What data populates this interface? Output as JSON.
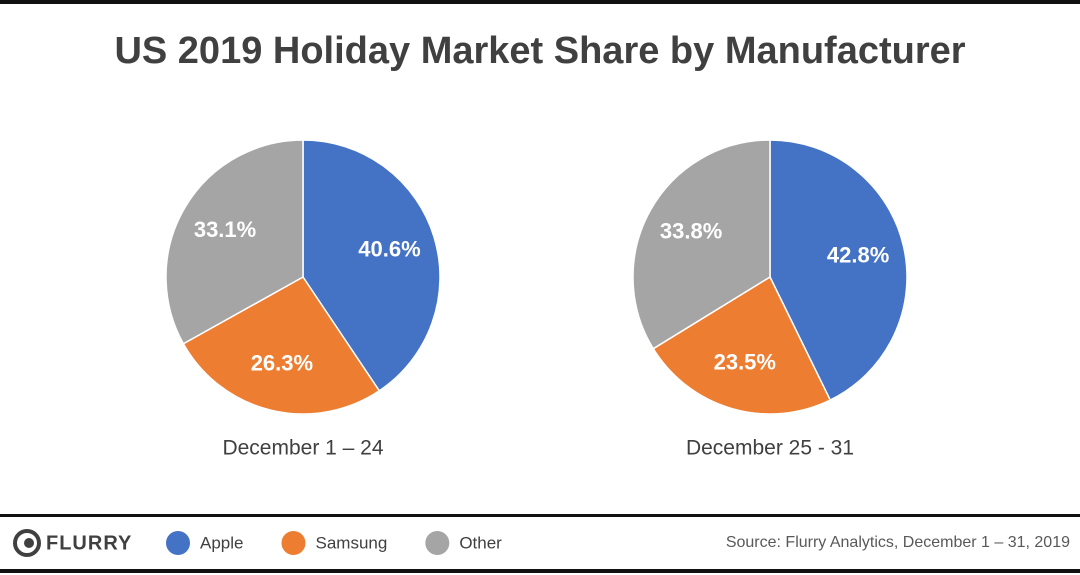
{
  "title": "US 2019 Holiday Market Share by Manufacturer",
  "chart_data": [
    {
      "type": "pie",
      "label": "December 1 – 24",
      "categories": [
        "Apple",
        "Samsung",
        "Other"
      ],
      "values": [
        40.6,
        26.3,
        33.1
      ],
      "value_labels": [
        "40.6%",
        "26.3%",
        "33.1%"
      ],
      "colors": [
        "#4472c4",
        "#ed7d31",
        "#a5a5a5"
      ]
    },
    {
      "type": "pie",
      "label": "December 25 - 31",
      "categories": [
        "Apple",
        "Samsung",
        "Other"
      ],
      "values": [
        42.8,
        23.5,
        33.8
      ],
      "value_labels": [
        "42.8%",
        "23.5%",
        "33.8%"
      ],
      "colors": [
        "#4472c4",
        "#ed7d31",
        "#a5a5a5"
      ]
    }
  ],
  "logo": "FLURRY",
  "source": "Source: Flurry Analytics, December 1 – 31, 2019"
}
